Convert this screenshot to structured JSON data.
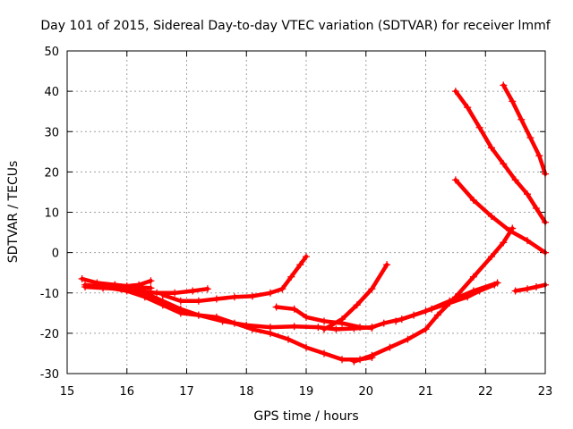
{
  "chart_data": {
    "type": "scatter",
    "title": "Day 101 of 2015, Sidereal Day-to-day VTEC variation (SDTVAR) for receiver lmmf",
    "xlabel": "GPS time / hours",
    "ylabel": "SDTVAR / TECUs",
    "xlim": [
      15,
      23
    ],
    "ylim": [
      -30,
      50
    ],
    "xticks": [
      15,
      16,
      17,
      18,
      19,
      20,
      21,
      22,
      23
    ],
    "yticks": [
      -30,
      -20,
      -10,
      0,
      10,
      20,
      30,
      40,
      50
    ],
    "grid": true,
    "marker": "+",
    "color": "#ff0000",
    "series": [
      {
        "points": [
          [
            15.25,
            -6.5
          ],
          [
            15.5,
            -7.5
          ],
          [
            15.8,
            -8
          ],
          [
            16.1,
            -8.5
          ],
          [
            16.4,
            -8.8
          ]
        ]
      },
      {
        "points": [
          [
            15.3,
            -8.5
          ],
          [
            15.6,
            -8.8
          ],
          [
            15.9,
            -9
          ],
          [
            16.2,
            -9.5
          ],
          [
            16.5,
            -10
          ],
          [
            16.8,
            -10
          ],
          [
            17.1,
            -9.5
          ],
          [
            17.35,
            -9
          ]
        ]
      },
      {
        "points": [
          [
            15.3,
            -8
          ],
          [
            15.6,
            -8.5
          ],
          [
            16.0,
            -9.5
          ],
          [
            16.3,
            -11
          ],
          [
            16.6,
            -13
          ],
          [
            16.9,
            -15
          ],
          [
            17.2,
            -15.5
          ],
          [
            17.5,
            -16
          ],
          [
            17.8,
            -17.5
          ],
          [
            18.1,
            -19
          ],
          [
            18.4,
            -20
          ],
          [
            18.7,
            -21.5
          ],
          [
            19.0,
            -23.5
          ],
          [
            19.3,
            -25
          ],
          [
            19.6,
            -26.5
          ],
          [
            19.9,
            -26.5
          ],
          [
            20.1,
            -26
          ]
        ]
      },
      {
        "points": [
          [
            15.8,
            -8
          ],
          [
            16.0,
            -8.3
          ],
          [
            16.2,
            -8
          ],
          [
            16.4,
            -7
          ]
        ]
      },
      {
        "points": [
          [
            16.0,
            -8.5
          ],
          [
            16.3,
            -10
          ],
          [
            16.6,
            -12
          ],
          [
            16.9,
            -14
          ],
          [
            17.2,
            -15.5
          ],
          [
            17.6,
            -17
          ],
          [
            18.0,
            -18
          ],
          [
            18.4,
            -18.5
          ],
          [
            18.8,
            -18.3
          ],
          [
            19.2,
            -18.5
          ],
          [
            19.5,
            -19
          ],
          [
            19.8,
            -18.8
          ],
          [
            20.1,
            -18.5
          ],
          [
            20.3,
            -17.5
          ],
          [
            20.6,
            -16.5
          ],
          [
            21.0,
            -14.5
          ],
          [
            21.4,
            -12
          ],
          [
            21.8,
            -9.5
          ],
          [
            22.2,
            -7.5
          ]
        ]
      },
      {
        "points": [
          [
            16.6,
            -10.5
          ],
          [
            16.9,
            -12
          ],
          [
            17.2,
            -12
          ],
          [
            17.5,
            -11.5
          ],
          [
            17.8,
            -11
          ],
          [
            18.1,
            -10.8
          ],
          [
            18.4,
            -10
          ],
          [
            18.6,
            -9
          ],
          [
            18.75,
            -6
          ],
          [
            18.9,
            -3
          ],
          [
            19.0,
            -1
          ]
        ]
      },
      {
        "points": [
          [
            18.5,
            -13.5
          ],
          [
            18.8,
            -14
          ],
          [
            19.0,
            -16
          ],
          [
            19.3,
            -17
          ],
          [
            19.6,
            -17.5
          ],
          [
            19.9,
            -18.5
          ],
          [
            20.1,
            -18.7
          ]
        ]
      },
      {
        "points": [
          [
            19.3,
            -19
          ],
          [
            19.6,
            -16.5
          ],
          [
            19.85,
            -13
          ],
          [
            20.1,
            -9
          ],
          [
            20.35,
            -3
          ]
        ]
      },
      {
        "points": [
          [
            19.8,
            -27
          ],
          [
            20.1,
            -25.5
          ],
          [
            20.4,
            -23.5
          ],
          [
            20.7,
            -21.5
          ],
          [
            21.0,
            -19
          ],
          [
            21.2,
            -15.5
          ],
          [
            21.5,
            -11
          ],
          [
            21.8,
            -6
          ],
          [
            22.1,
            -1
          ],
          [
            22.3,
            2.5
          ],
          [
            22.45,
            6
          ]
        ]
      },
      {
        "points": [
          [
            20.5,
            -17
          ],
          [
            20.8,
            -15.5
          ],
          [
            21.1,
            -14
          ],
          [
            21.4,
            -12.5
          ],
          [
            21.7,
            -11
          ],
          [
            21.9,
            -9.5
          ],
          [
            22.15,
            -8
          ]
        ]
      },
      {
        "points": [
          [
            21.5,
            18
          ],
          [
            21.8,
            13
          ],
          [
            22.1,
            9
          ],
          [
            22.4,
            5.5
          ],
          [
            22.7,
            3
          ],
          [
            23.0,
            0
          ]
        ]
      },
      {
        "points": [
          [
            21.5,
            40
          ],
          [
            21.7,
            36
          ],
          [
            21.9,
            31
          ],
          [
            22.1,
            26
          ],
          [
            22.3,
            22
          ],
          [
            22.5,
            18
          ],
          [
            22.7,
            14.5
          ],
          [
            22.85,
            11
          ],
          [
            23.0,
            7.5
          ]
        ]
      },
      {
        "points": [
          [
            22.3,
            41.5
          ],
          [
            22.45,
            37.5
          ],
          [
            22.6,
            33
          ],
          [
            22.75,
            28.5
          ],
          [
            22.9,
            24
          ],
          [
            23.0,
            19.5
          ]
        ]
      },
      {
        "points": [
          [
            22.5,
            -9.5
          ],
          [
            22.7,
            -9
          ],
          [
            22.85,
            -8.5
          ],
          [
            23.0,
            -8
          ]
        ]
      }
    ]
  }
}
